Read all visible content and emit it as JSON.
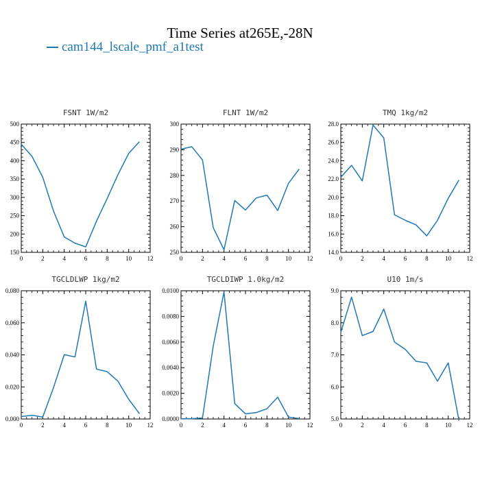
{
  "title": "Time Series at265E,-28N",
  "legend": {
    "label": "cam144_lscale_pmf_a1test",
    "color": "#1f77b4"
  },
  "chart_data": [
    {
      "type": "line",
      "title": "FSNT  1W/m2",
      "x": [
        0,
        1,
        2,
        3,
        4,
        5,
        6,
        7,
        8,
        9,
        10,
        11
      ],
      "series": [
        {
          "name": "cam144_lscale_pmf_a1test",
          "values": [
            445,
            412,
            355,
            263,
            192,
            175,
            165,
            235,
            297,
            362,
            420,
            452
          ]
        }
      ],
      "xlim": [
        0,
        12
      ],
      "ylim": [
        150,
        500
      ],
      "xticks": [
        0,
        2,
        4,
        6,
        8,
        10,
        12
      ],
      "yticks": [
        150,
        200,
        250,
        300,
        350,
        400,
        450,
        500
      ],
      "ytick_labels": [
        "150",
        "200",
        "250",
        "300",
        "350",
        "400",
        "450",
        "500"
      ]
    },
    {
      "type": "line",
      "title": "FLNT  1W/m2",
      "x": [
        0,
        1,
        2,
        3,
        4,
        5,
        6,
        7,
        8,
        9,
        10,
        11
      ],
      "series": [
        {
          "name": "cam144_lscale_pmf_a1test",
          "values": [
            290.2,
            291.2,
            286,
            259.6,
            251,
            270.2,
            266.5,
            271.2,
            272.3,
            266.3,
            276.9,
            282.5
          ]
        }
      ],
      "xlim": [
        0,
        12
      ],
      "ylim": [
        250,
        300
      ],
      "xticks": [
        0,
        2,
        4,
        6,
        8,
        10,
        12
      ],
      "yticks": [
        250,
        260,
        270,
        280,
        290,
        300
      ],
      "ytick_labels": [
        "250",
        "260",
        "270",
        "280",
        "290",
        "300"
      ]
    },
    {
      "type": "line",
      "title": "TMQ  1kg/m2",
      "x": [
        0,
        1,
        2,
        3,
        4,
        5,
        6,
        7,
        8,
        9,
        10,
        11
      ],
      "series": [
        {
          "name": "cam144_lscale_pmf_a1test",
          "values": [
            22.2,
            23.5,
            21.8,
            27.9,
            26.5,
            18.1,
            17.5,
            17.0,
            15.8,
            17.5,
            19.9,
            21.9
          ]
        }
      ],
      "xlim": [
        0,
        12
      ],
      "ylim": [
        14,
        28
      ],
      "xticks": [
        0,
        2,
        4,
        6,
        8,
        10,
        12
      ],
      "yticks": [
        14,
        16,
        18,
        20,
        22,
        24,
        26,
        28
      ],
      "ytick_labels": [
        "14.0",
        "16.0",
        "18.0",
        "20.0",
        "22.0",
        "24.0",
        "26.0",
        "28.0"
      ]
    },
    {
      "type": "line",
      "title": "TGCLDLWP  1kg/m2",
      "x": [
        0,
        1,
        2,
        3,
        4,
        5,
        6,
        7,
        8,
        9,
        10,
        11
      ],
      "series": [
        {
          "name": "cam144_lscale_pmf_a1test",
          "values": [
            0.0015,
            0.0023,
            0.0012,
            0.0195,
            0.0401,
            0.0387,
            0.0735,
            0.0311,
            0.0295,
            0.0236,
            0.0123,
            0.0033
          ]
        }
      ],
      "xlim": [
        0,
        12
      ],
      "ylim": [
        0,
        0.08
      ],
      "xticks": [
        0,
        2,
        4,
        6,
        8,
        10,
        12
      ],
      "yticks": [
        0,
        0.02,
        0.04,
        0.06,
        0.08
      ],
      "ytick_labels": [
        "0.000",
        "0.020",
        "0.040",
        "0.060",
        "0.080"
      ]
    },
    {
      "type": "line",
      "title": "TGCLDIWP  1.0kg/m2",
      "x": [
        0,
        1,
        2,
        3,
        4,
        5,
        6,
        7,
        8,
        9,
        10,
        11
      ],
      "series": [
        {
          "name": "cam144_lscale_pmf_a1test",
          "values": [
            2e-05,
            2e-05,
            8e-05,
            0.0057,
            0.0099,
            0.0012,
            0.0004,
            0.0005,
            0.0008,
            0.0017,
            0.00015,
            3e-05
          ]
        }
      ],
      "xlim": [
        0,
        12
      ],
      "ylim": [
        0,
        0.01
      ],
      "xticks": [
        0,
        2,
        4,
        6,
        8,
        10,
        12
      ],
      "yticks": [
        0,
        0.002,
        0.004,
        0.006,
        0.008,
        0.01
      ],
      "ytick_labels": [
        "0.0000",
        "0.0020",
        "0.0040",
        "0.0060",
        "0.0080",
        "0.0100"
      ]
    },
    {
      "type": "line",
      "title": "U10  1m/s",
      "x": [
        0,
        1,
        2,
        3,
        4,
        5,
        6,
        7,
        8,
        9,
        10,
        11
      ],
      "series": [
        {
          "name": "cam144_lscale_pmf_a1test",
          "values": [
            7.7,
            8.8,
            7.6,
            7.73,
            8.43,
            7.4,
            7.17,
            6.8,
            6.75,
            6.18,
            6.75,
            4.95
          ]
        }
      ],
      "xlim": [
        0,
        12
      ],
      "ylim": [
        5,
        9
      ],
      "xticks": [
        0,
        2,
        4,
        6,
        8,
        10,
        12
      ],
      "yticks": [
        5,
        6,
        7,
        8,
        9
      ],
      "ytick_labels": [
        "5.0",
        "6.0",
        "7.0",
        "8.0",
        "9.0"
      ]
    }
  ]
}
